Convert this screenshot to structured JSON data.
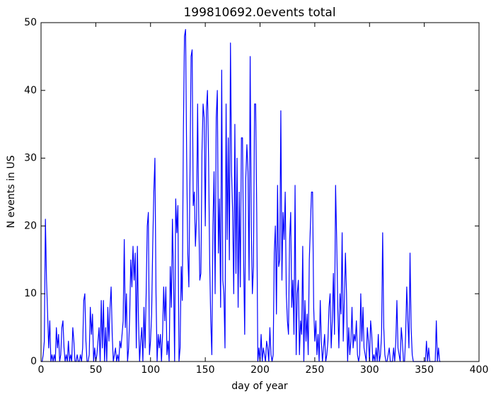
{
  "chart_data": {
    "type": "line",
    "title": "199810692.0events total",
    "x_label": "day of year",
    "y_label": "N events in US",
    "xlim": [
      0,
      400
    ],
    "xticks": [
      0,
      50,
      100,
      150,
      200,
      250,
      300,
      350,
      400
    ],
    "ylim": [
      0,
      50
    ],
    "yticks": [
      0,
      10,
      20,
      30,
      40,
      50
    ],
    "x": [
      0,
      1,
      2,
      3,
      4,
      5,
      6,
      7,
      8,
      9,
      10,
      11,
      12,
      13,
      14,
      15,
      16,
      17,
      18,
      19,
      20,
      21,
      22,
      23,
      24,
      25,
      26,
      27,
      28,
      29,
      30,
      31,
      32,
      33,
      34,
      35,
      36,
      37,
      38,
      39,
      40,
      41,
      42,
      43,
      44,
      45,
      46,
      47,
      48,
      49,
      50,
      51,
      52,
      53,
      54,
      55,
      56,
      57,
      58,
      59,
      60,
      61,
      62,
      63,
      64,
      65,
      66,
      67,
      68,
      69,
      70,
      71,
      72,
      73,
      74,
      75,
      76,
      77,
      78,
      79,
      80,
      81,
      82,
      83,
      84,
      85,
      86,
      87,
      88,
      89,
      90,
      91,
      92,
      93,
      94,
      95,
      96,
      97,
      98,
      99,
      100,
      101,
      102,
      103,
      104,
      105,
      106,
      107,
      108,
      109,
      110,
      111,
      112,
      113,
      114,
      115,
      116,
      117,
      118,
      119,
      120,
      121,
      122,
      123,
      124,
      125,
      126,
      127,
      128,
      129,
      130,
      131,
      132,
      133,
      134,
      135,
      136,
      137,
      138,
      139,
      140,
      141,
      142,
      143,
      144,
      145,
      146,
      147,
      148,
      149,
      150,
      151,
      152,
      153,
      154,
      155,
      156,
      157,
      158,
      159,
      160,
      161,
      162,
      163,
      164,
      165,
      166,
      167,
      168,
      169,
      170,
      171,
      172,
      173,
      174,
      175,
      176,
      177,
      178,
      179,
      180,
      181,
      182,
      183,
      184,
      185,
      186,
      187,
      188,
      189,
      190,
      191,
      192,
      193,
      194,
      195,
      196,
      197,
      198,
      199,
      200,
      201,
      202,
      203,
      204,
      205,
      206,
      207,
      208,
      209,
      210,
      211,
      212,
      213,
      214,
      215,
      216,
      217,
      218,
      219,
      220,
      221,
      222,
      223,
      224,
      225,
      226,
      227,
      228,
      229,
      230,
      231,
      232,
      233,
      234,
      235,
      236,
      237,
      238,
      239,
      240,
      241,
      242,
      243,
      244,
      245,
      246,
      247,
      248,
      249,
      250,
      251,
      252,
      253,
      254,
      255,
      256,
      257,
      258,
      259,
      260,
      261,
      262,
      263,
      264,
      265,
      266,
      267,
      268,
      269,
      270,
      271,
      272,
      273,
      274,
      275,
      276,
      277,
      278,
      279,
      280,
      281,
      282,
      283,
      284,
      285,
      286,
      287,
      288,
      289,
      290,
      291,
      292,
      293,
      294,
      295,
      296,
      297,
      298,
      299,
      300,
      301,
      302,
      303,
      304,
      305,
      306,
      307,
      308,
      309,
      310,
      311,
      312,
      313,
      314,
      315,
      316,
      317,
      318,
      319,
      320,
      321,
      322,
      323,
      324,
      325,
      326,
      327,
      328,
      329,
      330,
      331,
      332,
      333,
      334,
      335,
      336,
      337,
      338,
      339,
      340,
      341,
      342,
      343,
      344,
      345,
      346,
      347,
      348,
      349,
      350,
      351,
      352,
      353,
      354,
      355,
      356,
      357,
      358,
      359,
      360,
      361,
      362,
      363,
      364,
      365
    ],
    "series": [
      {
        "color": "#0000ff",
        "values": [
          0,
          0,
          1,
          3,
          21,
          12,
          7,
          2,
          6,
          0,
          1,
          0,
          1,
          0,
          5,
          2,
          4,
          0,
          1,
          5,
          6,
          2,
          0,
          1,
          0,
          3,
          0,
          1,
          0,
          5,
          3,
          0,
          0,
          1,
          0,
          0,
          1,
          0,
          2,
          9,
          10,
          3,
          0,
          0,
          1,
          8,
          4,
          7,
          0,
          2,
          0,
          1,
          3,
          5,
          0,
          9,
          2,
          9,
          0,
          5,
          0,
          8,
          3,
          8,
          11,
          4,
          0,
          1,
          2,
          0,
          1,
          0,
          3,
          2,
          4,
          6,
          18,
          5,
          10,
          0,
          2,
          7,
          15,
          11,
          17,
          12,
          16,
          2,
          17,
          6,
          0,
          3,
          5,
          0,
          8,
          2,
          10,
          20,
          22,
          1,
          3,
          7,
          17,
          25,
          30,
          10,
          0,
          4,
          2,
          4,
          0,
          4,
          11,
          6,
          11,
          1,
          3,
          0,
          14,
          8,
          21,
          12,
          0,
          24,
          19,
          23,
          0,
          2,
          14,
          9,
          34,
          48,
          49,
          30,
          16,
          11,
          27,
          45,
          46,
          23,
          25,
          17,
          21,
          38,
          22,
          12,
          13,
          31,
          38,
          36,
          20,
          37,
          40,
          30,
          15,
          6,
          1,
          20,
          28,
          10,
          36,
          40,
          16,
          24,
          8,
          43,
          12,
          10,
          2,
          38,
          18,
          33,
          15,
          47,
          28,
          22,
          10,
          35,
          13,
          30,
          8,
          25,
          11,
          33,
          33,
          15,
          4,
          27,
          32,
          28,
          12,
          45,
          20,
          10,
          14,
          38,
          38,
          22,
          0,
          2,
          0,
          4,
          0,
          2,
          1,
          0,
          3,
          2,
          0,
          5,
          1,
          0,
          1,
          16,
          20,
          7,
          26,
          14,
          15,
          37,
          12,
          22,
          18,
          25,
          10,
          6,
          4,
          18,
          22,
          8,
          12,
          4,
          26,
          1,
          10,
          12,
          1,
          6,
          4,
          17,
          0,
          9,
          3,
          7,
          1,
          15,
          20,
          25,
          25,
          8,
          3,
          6,
          1,
          4,
          0,
          9,
          3,
          0,
          2,
          4,
          0,
          1,
          3,
          8,
          10,
          2,
          6,
          13,
          4,
          26,
          18,
          8,
          2,
          10,
          7,
          19,
          3,
          9,
          16,
          10,
          0,
          5,
          1,
          3,
          8,
          2,
          4,
          3,
          6,
          1,
          0,
          1,
          10,
          3,
          8,
          2,
          1,
          0,
          5,
          3,
          0,
          6,
          4,
          0,
          1,
          0,
          2,
          0,
          4,
          0,
          1,
          4,
          19,
          5,
          1,
          0,
          0,
          1,
          2,
          0,
          0,
          0,
          2,
          0,
          3,
          9,
          2,
          1,
          0,
          5,
          3,
          0,
          0,
          4,
          11,
          6,
          2,
          16,
          5,
          1,
          0,
          0,
          0,
          0,
          0,
          0,
          0,
          0,
          0,
          0,
          0,
          0,
          3,
          0,
          2,
          0,
          0,
          0,
          0,
          0,
          0,
          6,
          0,
          2,
          0,
          0
        ]
      }
    ]
  }
}
